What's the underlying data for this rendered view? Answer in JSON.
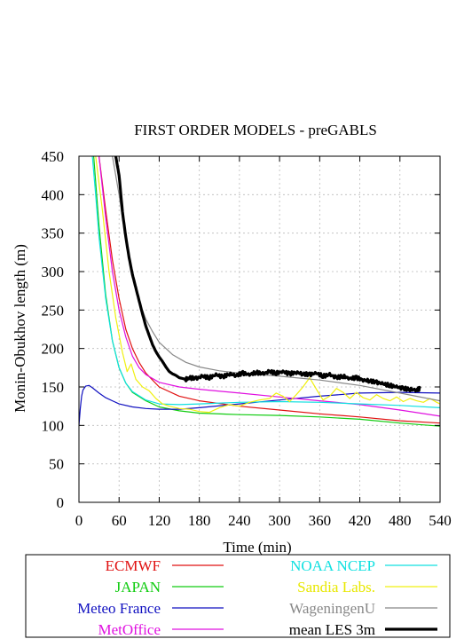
{
  "chart_data": {
    "type": "line",
    "title": "FIRST ORDER MODELS  - preGABLS",
    "xlabel": "Time (min)",
    "ylabel": "Monin-Obukhov length (m)",
    "xlim": [
      0,
      540
    ],
    "ylim": [
      0,
      450
    ],
    "x_ticks": [
      "0",
      "60",
      "120",
      "180",
      "240",
      "300",
      "360",
      "420",
      "480",
      "540"
    ],
    "y_ticks": [
      "0",
      "50",
      "100",
      "150",
      "200",
      "250",
      "300",
      "350",
      "400",
      "450"
    ],
    "grid": true,
    "legend_placement": "bottom",
    "series": [
      {
        "name": "ECMWF",
        "color": "#e01010",
        "width": 1.2,
        "points": [
          [
            30,
            450
          ],
          [
            40,
            380
          ],
          [
            50,
            315
          ],
          [
            60,
            265
          ],
          [
            70,
            225
          ],
          [
            80,
            200
          ],
          [
            90,
            182
          ],
          [
            100,
            168
          ],
          [
            120,
            150
          ],
          [
            150,
            138
          ],
          [
            180,
            132
          ],
          [
            240,
            125
          ],
          [
            300,
            120
          ],
          [
            360,
            115
          ],
          [
            420,
            111
          ],
          [
            480,
            106
          ],
          [
            540,
            103
          ]
        ]
      },
      {
        "name": "JAPAN",
        "color": "#10cc10",
        "width": 1.2,
        "points": [
          [
            22,
            450
          ],
          [
            30,
            360
          ],
          [
            40,
            270
          ],
          [
            50,
            210
          ],
          [
            60,
            175
          ],
          [
            70,
            155
          ],
          [
            80,
            143
          ],
          [
            100,
            132
          ],
          [
            120,
            124
          ],
          [
            150,
            119
          ],
          [
            180,
            116
          ],
          [
            240,
            114
          ],
          [
            300,
            113
          ],
          [
            360,
            111
          ],
          [
            420,
            108
          ],
          [
            480,
            103
          ],
          [
            540,
            99
          ]
        ]
      },
      {
        "name": "Meteo France",
        "color": "#1010c0",
        "width": 1.2,
        "points": [
          [
            0,
            100
          ],
          [
            2,
            122
          ],
          [
            4,
            138
          ],
          [
            6,
            146
          ],
          [
            10,
            151
          ],
          [
            15,
            152
          ],
          [
            20,
            149
          ],
          [
            30,
            142
          ],
          [
            40,
            136
          ],
          [
            60,
            128
          ],
          [
            80,
            124
          ],
          [
            100,
            122
          ],
          [
            120,
            121
          ],
          [
            150,
            121
          ],
          [
            180,
            123
          ],
          [
            240,
            128
          ],
          [
            300,
            133
          ],
          [
            360,
            138
          ],
          [
            420,
            142
          ],
          [
            480,
            143
          ],
          [
            540,
            142
          ]
        ]
      },
      {
        "name": "MetOffice",
        "color": "#e010e0",
        "width": 1.2,
        "points": [
          [
            30,
            450
          ],
          [
            40,
            370
          ],
          [
            50,
            300
          ],
          [
            60,
            250
          ],
          [
            70,
            215
          ],
          [
            80,
            190
          ],
          [
            90,
            175
          ],
          [
            100,
            166
          ],
          [
            120,
            156
          ],
          [
            150,
            150
          ],
          [
            180,
            147
          ],
          [
            240,
            142
          ],
          [
            300,
            137
          ],
          [
            360,
            132
          ],
          [
            420,
            127
          ],
          [
            480,
            120
          ],
          [
            540,
            112
          ]
        ]
      },
      {
        "name": "NOAA NCEP",
        "color": "#10e0e0",
        "width": 1.2,
        "points": [
          [
            20,
            450
          ],
          [
            25,
            400
          ],
          [
            30,
            345
          ],
          [
            40,
            265
          ],
          [
            50,
            210
          ],
          [
            60,
            175
          ],
          [
            70,
            155
          ],
          [
            80,
            144
          ],
          [
            100,
            133
          ],
          [
            120,
            128
          ],
          [
            150,
            127
          ],
          [
            180,
            128
          ],
          [
            240,
            130
          ],
          [
            300,
            131
          ],
          [
            360,
            130
          ],
          [
            420,
            128
          ],
          [
            480,
            126
          ],
          [
            540,
            123
          ]
        ]
      },
      {
        "name": "Sandia Labs.",
        "color": "#f0f010",
        "width": 1.2,
        "points": [
          [
            25,
            450
          ],
          [
            35,
            380
          ],
          [
            45,
            300
          ],
          [
            55,
            240
          ],
          [
            65,
            195
          ],
          [
            72,
            170
          ],
          [
            78,
            180
          ],
          [
            85,
            160
          ],
          [
            95,
            150
          ],
          [
            105,
            145
          ],
          [
            115,
            135
          ],
          [
            125,
            128
          ],
          [
            135,
            125
          ],
          [
            150,
            122
          ],
          [
            165,
            121
          ],
          [
            180,
            118
          ],
          [
            195,
            117
          ],
          [
            210,
            123
          ],
          [
            225,
            127
          ],
          [
            240,
            125
          ],
          [
            255,
            130
          ],
          [
            270,
            133
          ],
          [
            285,
            135
          ],
          [
            295,
            142
          ],
          [
            305,
            138
          ],
          [
            315,
            131
          ],
          [
            325,
            140
          ],
          [
            335,
            150
          ],
          [
            345,
            162
          ],
          [
            355,
            147
          ],
          [
            365,
            133
          ],
          [
            375,
            138
          ],
          [
            385,
            148
          ],
          [
            395,
            143
          ],
          [
            405,
            135
          ],
          [
            415,
            143
          ],
          [
            425,
            136
          ],
          [
            435,
            133
          ],
          [
            445,
            140
          ],
          [
            455,
            135
          ],
          [
            465,
            132
          ],
          [
            475,
            137
          ],
          [
            485,
            131
          ],
          [
            495,
            135
          ],
          [
            505,
            132
          ],
          [
            515,
            130
          ],
          [
            525,
            135
          ],
          [
            535,
            130
          ],
          [
            540,
            128
          ]
        ]
      },
      {
        "name": "WageningenU",
        "color": "#888888",
        "width": 1.2,
        "points": [
          [
            50,
            450
          ],
          [
            60,
            400
          ],
          [
            70,
            340
          ],
          [
            80,
            295
          ],
          [
            90,
            262
          ],
          [
            100,
            238
          ],
          [
            110,
            222
          ],
          [
            120,
            208
          ],
          [
            140,
            192
          ],
          [
            160,
            182
          ],
          [
            180,
            176
          ],
          [
            210,
            171
          ],
          [
            240,
            168
          ],
          [
            300,
            164
          ],
          [
            360,
            159
          ],
          [
            420,
            152
          ],
          [
            480,
            142
          ],
          [
            540,
            132
          ]
        ]
      },
      {
        "name": "mean LES 3m",
        "color": "#000000",
        "width": 3.2,
        "points": [
          [
            55,
            450
          ],
          [
            60,
            425
          ],
          [
            65,
            378
          ],
          [
            70,
            345
          ],
          [
            75,
            318
          ],
          [
            80,
            296
          ],
          [
            85,
            279
          ],
          [
            90,
            262
          ],
          [
            95,
            245
          ],
          [
            100,
            229
          ],
          [
            105,
            217
          ],
          [
            110,
            205
          ],
          [
            115,
            196
          ],
          [
            120,
            189
          ],
          [
            125,
            183
          ],
          [
            130,
            176
          ],
          [
            135,
            170
          ],
          [
            140,
            167
          ],
          [
            145,
            165
          ],
          [
            150,
            162
          ],
          [
            160,
            160
          ],
          [
            165,
            162
          ],
          [
            175,
            161
          ],
          [
            185,
            164
          ],
          [
            195,
            162
          ],
          [
            205,
            166
          ],
          [
            215,
            163
          ],
          [
            225,
            167
          ],
          [
            235,
            165
          ],
          [
            245,
            168
          ],
          [
            255,
            166
          ],
          [
            265,
            169
          ],
          [
            275,
            167
          ],
          [
            285,
            170
          ],
          [
            295,
            168
          ],
          [
            305,
            170
          ],
          [
            315,
            167
          ],
          [
            325,
            169
          ],
          [
            335,
            167
          ],
          [
            345,
            166
          ],
          [
            355,
            168
          ],
          [
            365,
            164
          ],
          [
            375,
            166
          ],
          [
            385,
            162
          ],
          [
            395,
            164
          ],
          [
            405,
            161
          ],
          [
            415,
            162
          ],
          [
            425,
            159
          ],
          [
            435,
            158
          ],
          [
            445,
            156
          ],
          [
            455,
            154
          ],
          [
            465,
            152
          ],
          [
            475,
            150
          ],
          [
            485,
            148
          ],
          [
            495,
            147
          ],
          [
            505,
            146
          ],
          [
            510,
            148
          ]
        ]
      }
    ]
  }
}
